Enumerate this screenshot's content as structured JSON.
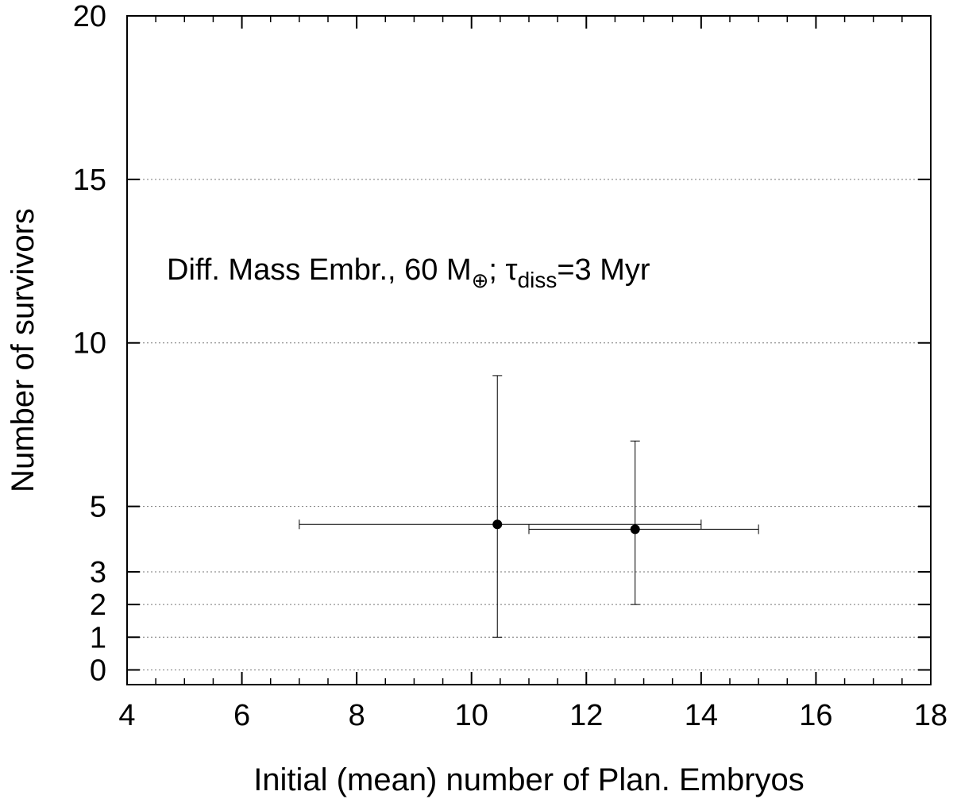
{
  "chart_data": {
    "type": "scatter",
    "xlabel": "Initial (mean) number of Plan. Embryos",
    "ylabel": "Number of survivors",
    "xlim": [
      4,
      18
    ],
    "ylim": [
      -0.45,
      20
    ],
    "x_ticks": [
      4,
      6,
      8,
      10,
      12,
      14,
      16,
      18
    ],
    "y_ticks": [
      0,
      1,
      2,
      3,
      5,
      10,
      15,
      20
    ],
    "y_gridlines": [
      0,
      1,
      2,
      3,
      5,
      10,
      15
    ],
    "grid": "horizontal dotted",
    "annotation": {
      "main": "Diff. Mass Embr., 60 M",
      "sub_symbol": "⊕",
      "sep": "; ",
      "tau": "τ",
      "tau_sub": "diss",
      "rest": "=3 Myr"
    },
    "points": [
      {
        "x": 10.45,
        "y": 4.45,
        "xerr": [
          7,
          14
        ],
        "yerr": [
          1,
          9
        ]
      },
      {
        "x": 12.85,
        "y": 4.3,
        "xerr": [
          11,
          15
        ],
        "yerr": [
          2,
          7
        ]
      }
    ]
  }
}
